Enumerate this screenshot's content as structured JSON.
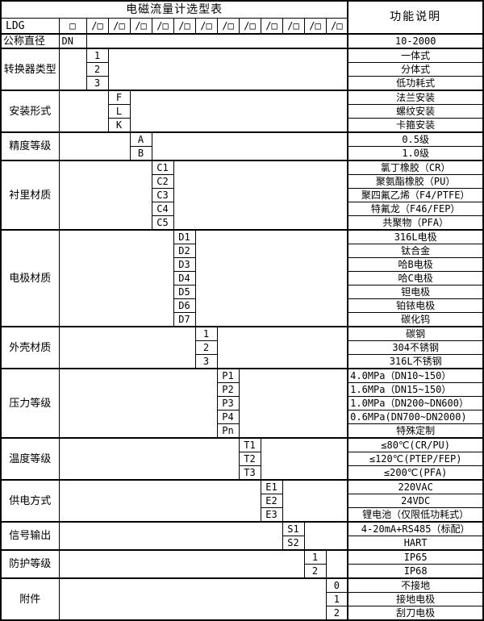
{
  "title": "电磁流量计选型表",
  "right_header": "功能说明",
  "model_row": {
    "prefix": "LDG",
    "box": "□",
    "slot": "/□",
    "slot_count": 12
  },
  "groups": [
    {
      "label": "公称直径",
      "label_align": "left",
      "col": 0,
      "options": [
        {
          "code": "DN",
          "desc": "10-2000"
        }
      ]
    },
    {
      "label": "转换器类型",
      "col": 1,
      "options": [
        {
          "code": "1",
          "desc": "一体式"
        },
        {
          "code": "2",
          "desc": "分体式"
        },
        {
          "code": "3",
          "desc": "低功耗式"
        }
      ]
    },
    {
      "label": "安装形式",
      "col": 2,
      "options": [
        {
          "code": "F",
          "desc": "法兰安装"
        },
        {
          "code": "L",
          "desc": "螺纹安装"
        },
        {
          "code": "K",
          "desc": "卡箍安装"
        }
      ]
    },
    {
      "label": "精度等级",
      "col": 3,
      "options": [
        {
          "code": "A",
          "desc": "0.5级"
        },
        {
          "code": "B",
          "desc": "1.0级"
        }
      ]
    },
    {
      "label": "衬里材质",
      "col": 4,
      "options": [
        {
          "code": "C1",
          "desc": "氯丁橡胶（CR）"
        },
        {
          "code": "C2",
          "desc": "聚氨酯橡胶（PU）"
        },
        {
          "code": "C3",
          "desc": "聚四氟乙烯（F4/PTFE）"
        },
        {
          "code": "C4",
          "desc": "特氟龙（F46/FEP）"
        },
        {
          "code": "C5",
          "desc": "共聚物（PFA）"
        }
      ]
    },
    {
      "label": "电极材质",
      "col": 5,
      "options": [
        {
          "code": "D1",
          "desc": "316L电极"
        },
        {
          "code": "D2",
          "desc": "钛合金"
        },
        {
          "code": "D3",
          "desc": "哈B电极"
        },
        {
          "code": "D4",
          "desc": "哈C电极"
        },
        {
          "code": "D5",
          "desc": "钽电极"
        },
        {
          "code": "D6",
          "desc": "铂铱电极"
        },
        {
          "code": "D7",
          "desc": "碳化钨"
        }
      ]
    },
    {
      "label": "外壳材质",
      "col": 6,
      "options": [
        {
          "code": "1",
          "desc": "碳钢"
        },
        {
          "code": "2",
          "desc": "304不锈钢"
        },
        {
          "code": "3",
          "desc": "316L不锈钢"
        }
      ]
    },
    {
      "label": "压力等级",
      "col": 7,
      "options": [
        {
          "code": "P1",
          "desc": "4.0MPa（DN10~150）",
          "desc_align": "left"
        },
        {
          "code": "P2",
          "desc": "1.6MPa（DN15~150）",
          "desc_align": "left"
        },
        {
          "code": "P3",
          "desc": "1.0MPa（DN200~DN600）",
          "desc_align": "left"
        },
        {
          "code": "P4",
          "desc": "0.6MPa(DN700~DN2000)",
          "desc_align": "left"
        },
        {
          "code": "Pn",
          "desc": "特殊定制"
        }
      ]
    },
    {
      "label": "温度等级",
      "col": 8,
      "options": [
        {
          "code": "T1",
          "desc": "≤80℃(CR/PU)"
        },
        {
          "code": "T2",
          "desc": "≤120℃(PTEP/FEP)"
        },
        {
          "code": "T3",
          "desc": "≤200℃(PFA)"
        }
      ]
    },
    {
      "label": "供电方式",
      "col": 9,
      "options": [
        {
          "code": "E1",
          "desc": "220VAC"
        },
        {
          "code": "E2",
          "desc": "24VDC"
        },
        {
          "code": "E3",
          "desc": "锂电池（仅限低功耗式）"
        }
      ]
    },
    {
      "label": "信号输出",
      "col": 10,
      "options": [
        {
          "code": "S1",
          "desc": "4-20mA+RS485（标配）"
        },
        {
          "code": "S2",
          "desc": "HART"
        }
      ]
    },
    {
      "label": "防护等级",
      "col": 11,
      "options": [
        {
          "code": "1",
          "desc": "IP65"
        },
        {
          "code": "2",
          "desc": "IP68"
        }
      ]
    },
    {
      "label": "附件",
      "col": 12,
      "options": [
        {
          "code": "0",
          "desc": "不接地"
        },
        {
          "code": "1",
          "desc": "接地电极"
        },
        {
          "code": "2",
          "desc": "刮刀电极"
        }
      ]
    }
  ]
}
